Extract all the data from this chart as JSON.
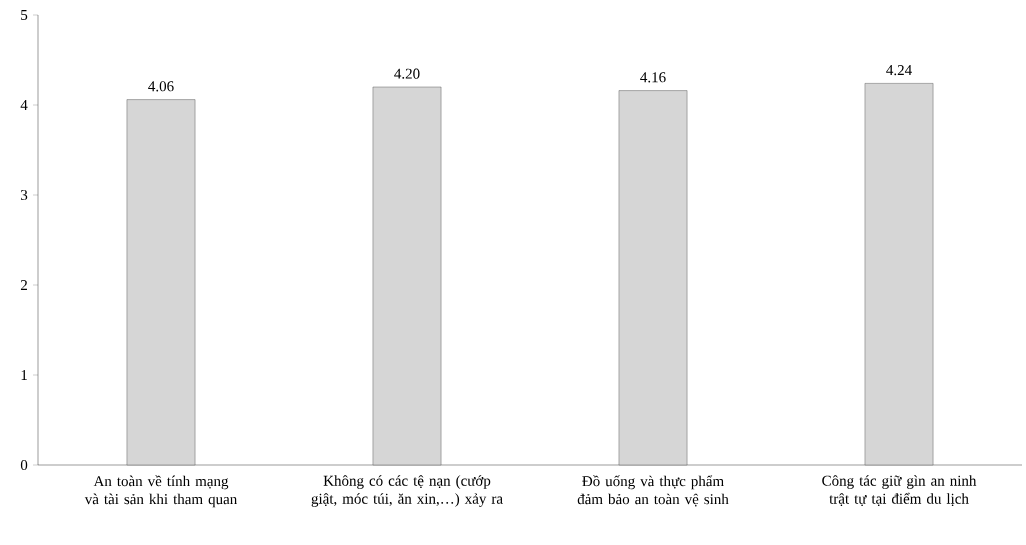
{
  "chart_data": {
    "type": "bar",
    "categories": [
      "An toàn về tính mạng và tài sản khi tham quan",
      "Không có các tệ nạn (cướp giật, móc túi, ăn xin,…) xảy ra",
      "Đồ uống và thực phẩm đảm bảo an toàn vệ sinh",
      "Công tác giữ gìn an ninh trật tự tại điểm du lịch"
    ],
    "values": [
      4.06,
      4.2,
      4.16,
      4.24
    ],
    "value_labels": [
      "4.06",
      "4.20",
      "4.16",
      "4.24"
    ],
    "color": "#d6d6d6",
    "ylim": [
      0,
      5
    ],
    "yticks": [
      0,
      1,
      2,
      3,
      4,
      5
    ]
  }
}
